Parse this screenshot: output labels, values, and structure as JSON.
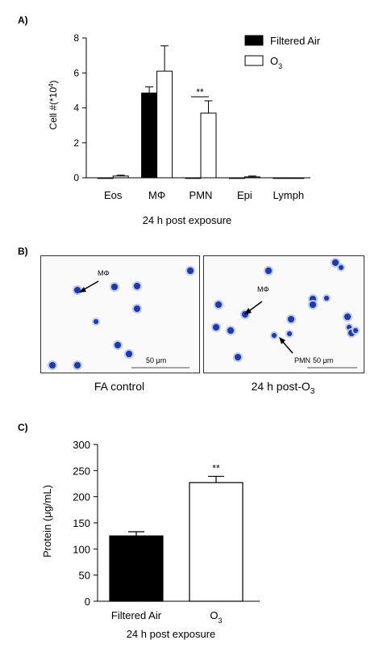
{
  "panels": {
    "a": "A)",
    "b": "B)",
    "c": "C)"
  },
  "colors": {
    "filtered_air": "#000000",
    "o3": "#ffffff",
    "stain": "#1f3aa8"
  },
  "chart_data": [
    {
      "type": "bar",
      "ylabel_main": "Cell #(*10",
      "ylabel_sup": "4",
      "ylabel_end": ")",
      "xlabel": "24 h post exposure",
      "ylim": [
        0,
        8
      ],
      "yticks": [
        "0",
        "2",
        "4",
        "6",
        "8"
      ],
      "categories": [
        "Eos",
        "MΦ",
        "PMN",
        "Epi",
        "Lymph"
      ],
      "series": [
        {
          "name": "Filtered Air",
          "values": [
            0.0,
            4.85,
            0.0,
            0.0,
            0.0
          ],
          "errors": [
            0.0,
            0.35,
            0.0,
            0.0,
            0.0
          ]
        },
        {
          "name": "O3",
          "values": [
            0.1,
            6.1,
            3.7,
            0.05,
            0.0
          ],
          "errors": [
            0.05,
            1.45,
            0.7,
            0.05,
            0.0
          ]
        }
      ],
      "legend": {
        "filtered_air": "Filtered Air",
        "o3_main": "O",
        "o3_sub": "3"
      },
      "significance": [
        {
          "category": "PMN",
          "label": "**"
        }
      ],
      "legend_position": "top-right"
    },
    {
      "type": "bar",
      "ylabel": "Protein (μg/mL)",
      "xlabel": "24 h post exposure",
      "ylim": [
        0,
        300
      ],
      "yticks": [
        "0",
        "50",
        "100",
        "150",
        "200",
        "250",
        "300"
      ],
      "categories": [
        "Filtered Air",
        "O3"
      ],
      "category_labels": {
        "fa": "Filtered Air",
        "o3_main": "O",
        "o3_sub": "3"
      },
      "values": [
        125,
        227
      ],
      "errors": [
        8,
        12
      ],
      "significance": [
        {
          "category": "O3",
          "label": "**"
        }
      ]
    }
  ],
  "micrographs": {
    "left": {
      "caption": "FA control",
      "labels": {
        "macrophage": "MΦ"
      },
      "scalebar": "50 μm"
    },
    "right": {
      "caption_main": "24 h post-O",
      "caption_sub": "3",
      "labels": {
        "macrophage": "MΦ",
        "pmn": "PMN"
      },
      "scalebar": "50 μm"
    }
  }
}
